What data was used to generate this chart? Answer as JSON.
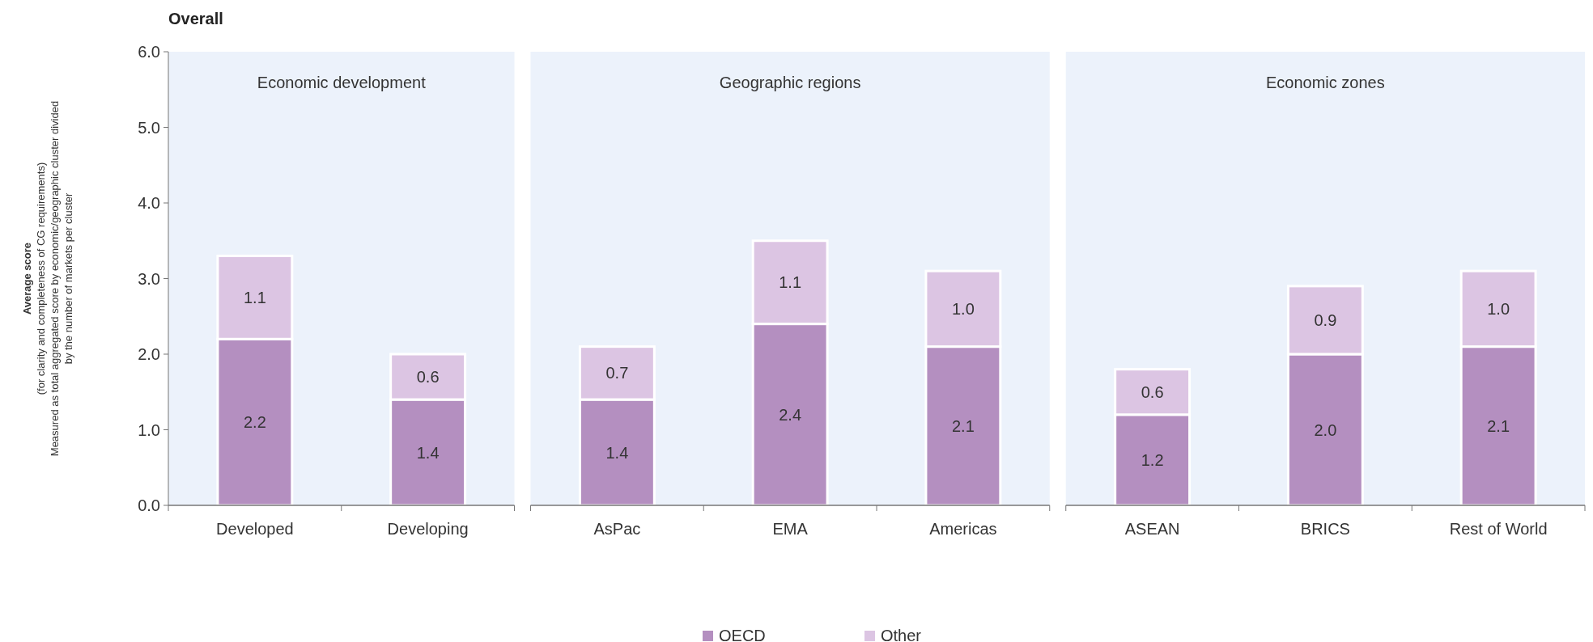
{
  "chart_data": [
    {
      "type": "bar",
      "title": "Economic development",
      "annotations": [
        "Overall"
      ],
      "ylabel": "Average score\n(for clarity and completeness of CG requirements)\nMeasured as total aggregated score by economic/geographic cluster divided\nby the number of markets per cluster",
      "categories": [
        "Developed",
        "Developing"
      ],
      "stacked": true,
      "ylim": [
        0,
        6
      ],
      "yticks": [
        {
          "value": 0,
          "label": "0.0"
        },
        {
          "value": 1,
          "label": "1.0"
        },
        {
          "value": 2,
          "label": "2.0"
        },
        {
          "value": 3,
          "label": "3.0"
        },
        {
          "value": 4,
          "label": "4.0"
        },
        {
          "value": 5,
          "label": "5.0"
        },
        {
          "value": 6,
          "label": "6.0"
        }
      ],
      "legend": "bottom",
      "series": [
        {
          "name": "OECD",
          "color": "#b48fc0",
          "values": [
            2.2,
            1.4
          ],
          "value_labels": [
            "2.2",
            "1.4"
          ]
        },
        {
          "name": "Other",
          "color": "#dcc5e3",
          "values": [
            1.1,
            0.6
          ],
          "value_labels": [
            "1.1",
            "0.6"
          ]
        }
      ]
    },
    {
      "type": "bar",
      "title": "Geographic regions",
      "categories": [
        "AsPac",
        "EMA",
        "Americas"
      ],
      "stacked": true,
      "ylim": [
        0,
        6
      ],
      "tick_labels": "x",
      "series": [
        {
          "color": "#b48fc0",
          "values": [
            1.4,
            2.4,
            2.1
          ],
          "value_labels": [
            "1.4",
            "2.4",
            "2.1"
          ]
        },
        {
          "color": "#dcc5e3",
          "values": [
            0.7,
            1.1,
            1.0
          ],
          "value_labels": [
            "0.7",
            "1.1",
            "1.0"
          ]
        }
      ]
    },
    {
      "type": "bar",
      "title": "Economic zones",
      "categories": [
        "ASEAN",
        "BRICS",
        "Rest of World"
      ],
      "stacked": true,
      "ylim": [
        0,
        6
      ],
      "tick_labels": "x",
      "series": [
        {
          "color": "#b48fc0",
          "values": [
            1.2,
            2.0,
            2.1
          ],
          "value_labels": [
            "1.2",
            "2.0",
            "2.1"
          ]
        },
        {
          "color": "#dcc5e3",
          "values": [
            0.6,
            0.9,
            1.0
          ],
          "value_labels": [
            "0.6",
            "0.9",
            "1.0"
          ]
        }
      ]
    }
  ]
}
